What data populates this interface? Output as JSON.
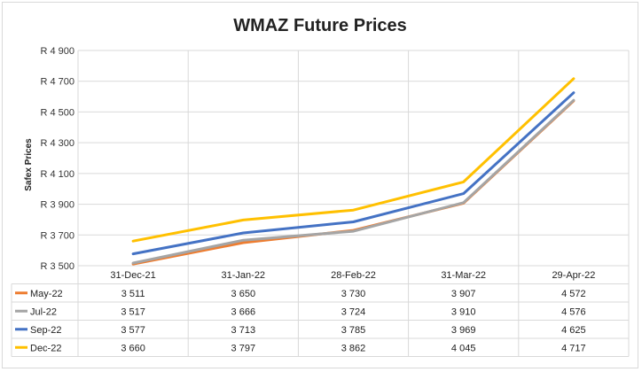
{
  "chart_data": {
    "type": "line",
    "title": "WMAZ Future Prices",
    "ylabel": "Safex Prices",
    "xlabel": "",
    "categories": [
      "31-Dec-21",
      "31-Jan-22",
      "28-Feb-22",
      "31-Mar-22",
      "29-Apr-22"
    ],
    "ylim": [
      3500,
      4900
    ],
    "yticks": [
      3500,
      3700,
      3900,
      4100,
      4300,
      4500,
      4700,
      4900
    ],
    "ytick_labels": [
      "R 3 500",
      "R 3 700",
      "R 3 900",
      "R 4 100",
      "R 4 300",
      "R 4 500",
      "R 4 700",
      "R 4 900"
    ],
    "grid": true,
    "legend": "data-table-bottom",
    "series": [
      {
        "name": "May-22",
        "color": "#ED7D31",
        "values": [
          3511,
          3650,
          3730,
          3907,
          4572
        ],
        "labels": [
          "3 511",
          "3 650",
          "3 730",
          "3 907",
          "4 572"
        ]
      },
      {
        "name": "Jul-22",
        "color": "#A5A5A5",
        "values": [
          3517,
          3666,
          3724,
          3910,
          4576
        ],
        "labels": [
          "3 517",
          "3 666",
          "3 724",
          "3 910",
          "4 576"
        ]
      },
      {
        "name": "Sep-22",
        "color": "#4472C4",
        "values": [
          3577,
          3713,
          3785,
          3969,
          4625
        ],
        "labels": [
          "3 577",
          "3 713",
          "3 785",
          "3 969",
          "4 625"
        ]
      },
      {
        "name": "Dec-22",
        "color": "#FFC000",
        "values": [
          3660,
          3797,
          3862,
          4045,
          4717
        ],
        "labels": [
          "3 660",
          "3 797",
          "3 862",
          "4 045",
          "4 717"
        ]
      }
    ]
  }
}
